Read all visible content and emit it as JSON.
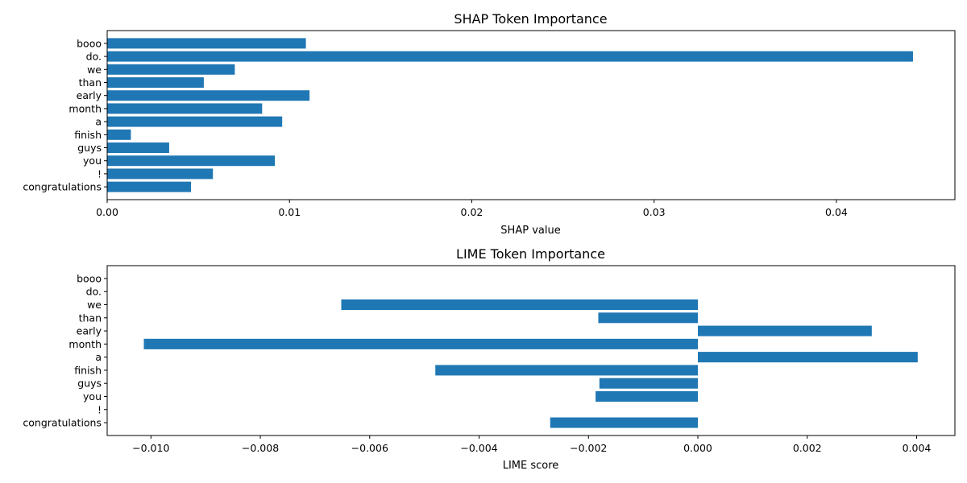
{
  "chart_data": [
    {
      "type": "bar",
      "orientation": "horizontal",
      "title": "SHAP Token Importance",
      "xlabel": "SHAP value",
      "ylabel": "",
      "categories": [
        "congratulations",
        "!",
        "you",
        "guys",
        "finish",
        "a",
        "month",
        "early",
        "than",
        "we",
        "do.",
        "booo"
      ],
      "values": [
        0.0046,
        0.0058,
        0.0092,
        0.0034,
        0.0013,
        0.0096,
        0.0085,
        0.0111,
        0.0053,
        0.007,
        0.0442,
        0.0109
      ],
      "xlim": [
        0,
        0.0465
      ],
      "xticks": [
        0,
        0.01,
        0.02,
        0.03,
        0.04
      ],
      "xtick_labels": [
        "0.00",
        "0.01",
        "0.02",
        "0.03",
        "0.04"
      ],
      "grid": false,
      "color": "#1f77b4"
    },
    {
      "type": "bar",
      "orientation": "horizontal",
      "title": "LIME Token Importance",
      "xlabel": "LIME score",
      "ylabel": "",
      "categories": [
        "congratulations",
        "!",
        "you",
        "guys",
        "finish",
        "a",
        "month",
        "early",
        "than",
        "we",
        "do.",
        "booo"
      ],
      "values": [
        -0.0027,
        0,
        -0.00187,
        -0.0018,
        -0.0048,
        0.00402,
        -0.01013,
        0.00318,
        -0.00182,
        -0.00652,
        0,
        0
      ],
      "xlim": [
        -0.0108,
        0.0047
      ],
      "xticks": [
        -0.01,
        -0.008,
        -0.006,
        -0.004,
        -0.002,
        0.0,
        0.002,
        0.004
      ],
      "xtick_labels": [
        "−0.010",
        "−0.008",
        "−0.006",
        "−0.004",
        "−0.002",
        "0.000",
        "0.002",
        "0.004"
      ],
      "grid": false,
      "color": "#1f77b4"
    }
  ]
}
